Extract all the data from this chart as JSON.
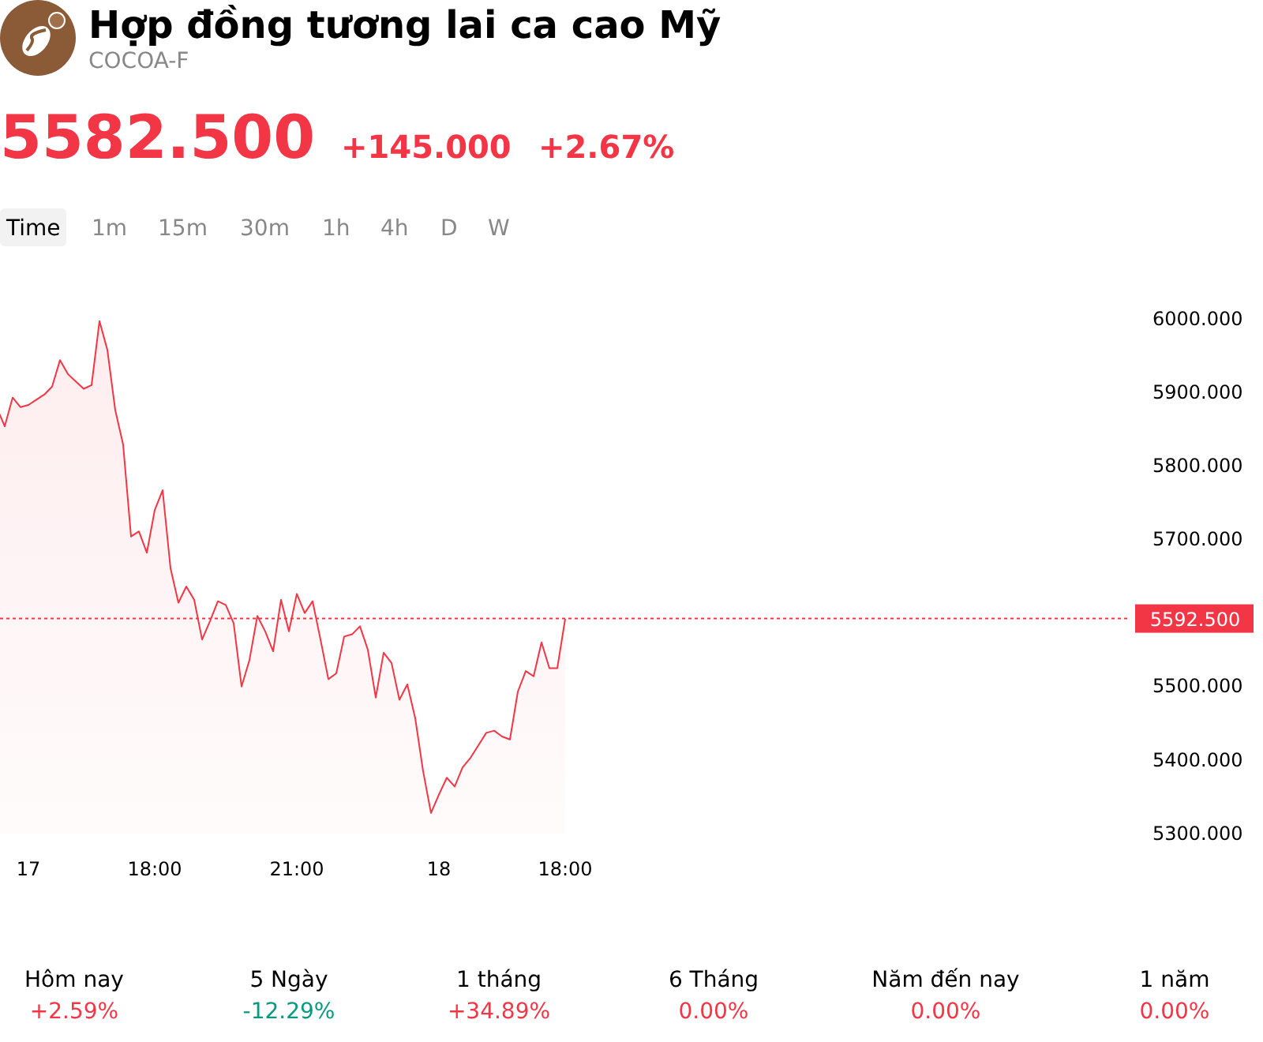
{
  "chart_data": {
    "type": "area",
    "title": "Hợp đồng tương lai ca cao Mỹ",
    "subtitle": "COCOA-F",
    "annotations": [
      "5582.500",
      "+145.000",
      "+2.67%",
      "Time",
      "1m",
      "15m",
      "30m",
      "1h",
      "4h",
      "D",
      "W",
      "Hôm nay",
      "+2.59%",
      "5 Ngày",
      "-12.29%",
      "1 tháng",
      "+34.89%",
      "6 Tháng",
      "0.00%",
      "Năm đến nay",
      "0.00%",
      "1 năm",
      "0.00%"
    ],
    "categories": [
      null,
      null,
      null,
      null,
      "17",
      null,
      null,
      null,
      null,
      null,
      null,
      null,
      null,
      null,
      null,
      null,
      null,
      null,
      null,
      null,
      "18:00",
      null,
      null,
      null,
      null,
      null,
      null,
      null,
      null,
      null,
      null,
      null,
      null,
      null,
      null,
      null,
      null,
      null,
      "21:00",
      null,
      null,
      null,
      null,
      null,
      null,
      null,
      null,
      null,
      null,
      null,
      null,
      null,
      null,
      null,
      null,
      null,
      "18",
      null,
      null,
      null,
      null,
      null,
      null,
      null,
      null,
      null,
      null,
      null,
      null,
      null,
      null,
      null,
      "18:00",
      null,
      null,
      null,
      null,
      null,
      null,
      null,
      null,
      null,
      null,
      null,
      null,
      null,
      null,
      null,
      null,
      null,
      null,
      null,
      null,
      null,
      null,
      null,
      null,
      null,
      null,
      null,
      null,
      null,
      null,
      null,
      null,
      null,
      null,
      null,
      null,
      null,
      null,
      null,
      null,
      null,
      null,
      null,
      null,
      null,
      null,
      null,
      null,
      null,
      null,
      null,
      null,
      null,
      null,
      null,
      null,
      null,
      null,
      null,
      null,
      null,
      null,
      null,
      null,
      null,
      null,
      null,
      null,
      null,
      null,
      null
    ],
    "series": [
      {
        "color": "#f23645",
        "values": [
          5879,
          5854,
          5893,
          5880,
          5883,
          5890,
          5897,
          5908,
          5944,
          5925,
          5915,
          5905,
          5910,
          5997,
          5958,
          5876,
          5829,
          5704,
          5711,
          5682,
          5740,
          5767,
          5661,
          5614,
          5636,
          5618,
          5564,
          5589,
          5616,
          5611,
          5586,
          5500,
          5536,
          5596,
          5575,
          5548,
          5618,
          5575,
          5626,
          5600,
          5616,
          5564,
          5510,
          5518,
          5568,
          5571,
          5582,
          5550,
          5485,
          5546,
          5532,
          5482,
          5503,
          5457,
          5385,
          5328,
          5353,
          5376,
          5364,
          5390,
          5403,
          5420,
          5437,
          5440,
          5432,
          5428,
          5493,
          5521,
          5514,
          5560,
          5525,
          5525,
          5592,
          null,
          null,
          null,
          null,
          null,
          null,
          null,
          null,
          null,
          null,
          null,
          null,
          null,
          null,
          null,
          null,
          null,
          null,
          null,
          null,
          null,
          null,
          null,
          null,
          null,
          null,
          null,
          null,
          null,
          null,
          null,
          null,
          null,
          null,
          null,
          null,
          null,
          null,
          null,
          null,
          null,
          null,
          null,
          null,
          null,
          null,
          null,
          null,
          null,
          null,
          null,
          null,
          null,
          null,
          null,
          null,
          null,
          null,
          null,
          null,
          null,
          null,
          null,
          null,
          null,
          null,
          null,
          null,
          null,
          null,
          null
        ]
      }
    ],
    "ylim": [
      5300,
      6000
    ],
    "yticks": [
      {
        "value": 5300,
        "label": "5300.000"
      },
      {
        "value": 5400,
        "label": "5400.000"
      },
      {
        "value": 5500,
        "label": "5500.000"
      },
      {
        "value": 5600,
        "label": null
      },
      {
        "value": 5700,
        "label": "5700.000"
      },
      {
        "value": 5800,
        "label": "5800.000"
      },
      {
        "value": 5900,
        "label": "5900.000"
      },
      {
        "value": 6000,
        "label": "6000.000"
      }
    ],
    "ref_lines": [
      {
        "axis": "y",
        "value": 5592.5,
        "label": "5592.500",
        "color": "#f23645",
        "line_style": "dotted"
      }
    ],
    "grid": false
  }
}
